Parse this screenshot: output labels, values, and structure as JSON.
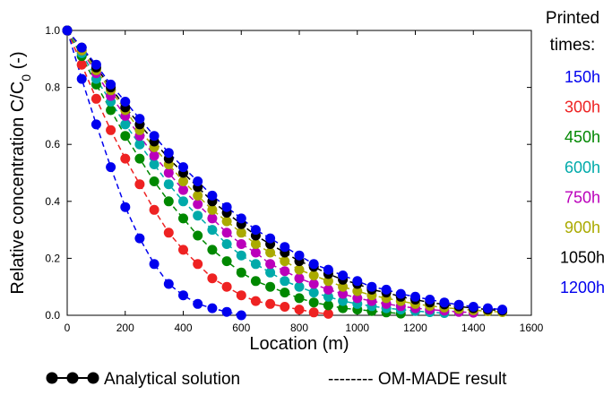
{
  "chart_data": {
    "type": "scatter",
    "xlabel": "Location (m)",
    "ylabel": {
      "main": "Relative concentration C/C",
      "sub": "0",
      "unit": " (-)"
    },
    "xlim": [
      0,
      1600
    ],
    "ylim": [
      0,
      1.0
    ],
    "x_ticks": [
      "0",
      "200",
      "400",
      "600",
      "800",
      "1000",
      "1200",
      "1400",
      "1600"
    ],
    "y_ticks": [
      "0.0",
      "0.2",
      "0.4",
      "0.6",
      "0.8",
      "1.0"
    ],
    "x": [
      0,
      50,
      100,
      150,
      200,
      250,
      300,
      350,
      400,
      450,
      500,
      550,
      600,
      650,
      700,
      750,
      800,
      850,
      900,
      950,
      1000,
      1050,
      1100,
      1150,
      1200,
      1250,
      1300,
      1350,
      1400,
      1450,
      1500
    ],
    "series": [
      {
        "name": "150h",
        "color": "#0000ee",
        "values": [
          1.0,
          0.83,
          0.67,
          0.52,
          0.38,
          0.27,
          0.18,
          0.11,
          0.07,
          0.04,
          0.025,
          0.012,
          0.0
        ]
      },
      {
        "name": "300h",
        "color": "#ee2222",
        "values": [
          1.0,
          0.88,
          0.76,
          0.65,
          0.55,
          0.46,
          0.37,
          0.29,
          0.23,
          0.18,
          0.13,
          0.1,
          0.07,
          0.05,
          0.04,
          0.03,
          0.02,
          0.01,
          0.005
        ]
      },
      {
        "name": "450h",
        "color": "#008800",
        "values": [
          1.0,
          0.91,
          0.81,
          0.72,
          0.63,
          0.55,
          0.47,
          0.4,
          0.34,
          0.28,
          0.23,
          0.19,
          0.15,
          0.12,
          0.1,
          0.08,
          0.06,
          0.045,
          0.035,
          0.025,
          0.02,
          0.015,
          0.01,
          0.006
        ]
      },
      {
        "name": "600h",
        "color": "#00aaaa",
        "values": [
          1.0,
          0.92,
          0.83,
          0.75,
          0.67,
          0.6,
          0.53,
          0.46,
          0.4,
          0.35,
          0.3,
          0.25,
          0.21,
          0.18,
          0.15,
          0.12,
          0.1,
          0.08,
          0.065,
          0.05,
          0.04,
          0.032,
          0.025,
          0.02,
          0.015,
          0.011,
          0.008
        ]
      },
      {
        "name": "750h",
        "color": "#bb00bb",
        "values": [
          1.0,
          0.93,
          0.85,
          0.77,
          0.7,
          0.63,
          0.56,
          0.5,
          0.44,
          0.39,
          0.34,
          0.29,
          0.25,
          0.22,
          0.18,
          0.155,
          0.13,
          0.11,
          0.09,
          0.075,
          0.06,
          0.05,
          0.04,
          0.032,
          0.025,
          0.02,
          0.016,
          0.012,
          0.009
        ]
      },
      {
        "name": "900h",
        "color": "#aaaa00",
        "values": [
          1.0,
          0.93,
          0.86,
          0.79,
          0.72,
          0.65,
          0.59,
          0.53,
          0.47,
          0.42,
          0.37,
          0.33,
          0.29,
          0.25,
          0.22,
          0.19,
          0.16,
          0.14,
          0.12,
          0.1,
          0.085,
          0.07,
          0.06,
          0.05,
          0.04,
          0.033,
          0.027,
          0.022,
          0.018,
          0.014,
          0.011
        ]
      },
      {
        "name": "1050h",
        "color": "#000000",
        "values": [
          1.0,
          0.94,
          0.87,
          0.8,
          0.73,
          0.67,
          0.61,
          0.55,
          0.5,
          0.45,
          0.4,
          0.36,
          0.32,
          0.28,
          0.25,
          0.22,
          0.19,
          0.17,
          0.145,
          0.125,
          0.11,
          0.09,
          0.08,
          0.065,
          0.055,
          0.045,
          0.038,
          0.031,
          0.025,
          0.02,
          0.016
        ]
      },
      {
        "name": "1200h",
        "color": "#0000ee",
        "values": [
          1.0,
          0.94,
          0.88,
          0.81,
          0.75,
          0.69,
          0.63,
          0.57,
          0.52,
          0.47,
          0.42,
          0.38,
          0.34,
          0.3,
          0.27,
          0.24,
          0.21,
          0.18,
          0.16,
          0.14,
          0.12,
          0.1,
          0.09,
          0.075,
          0.065,
          0.055,
          0.045,
          0.037,
          0.03,
          0.025,
          0.02
        ]
      }
    ],
    "grid": false,
    "legend": {
      "analytical_label": "Analytical solution",
      "model_label": "-------- OM-MADE result",
      "placement": "bottom"
    },
    "printed_times_title": [
      "Printed",
      "times:"
    ]
  }
}
